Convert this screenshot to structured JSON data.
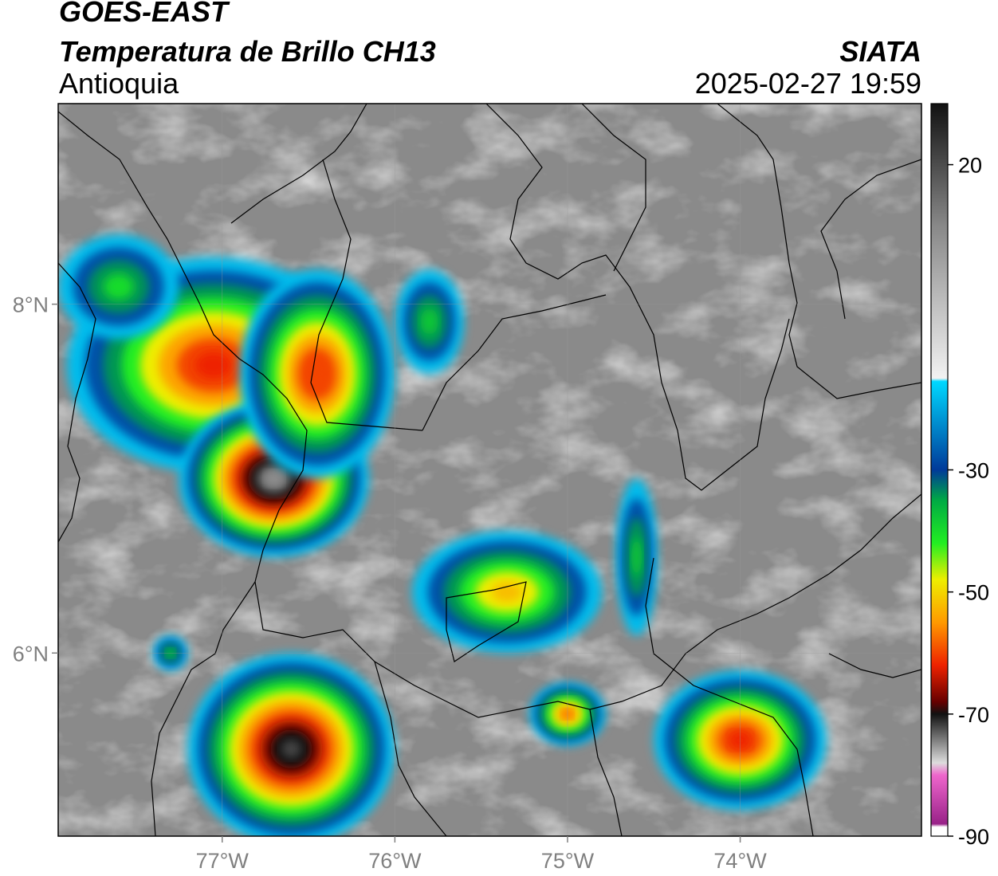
{
  "header": {
    "satellite": "GOES-EAST",
    "product": "Temperatura de Brillo CH13",
    "region": "Antioquia",
    "organization": "SIATA",
    "timestamp": "2025-02-27 19:59"
  },
  "map": {
    "lon_range": [
      -77.95,
      -72.95
    ],
    "lat_range": [
      4.95,
      9.15
    ],
    "lon_ticks": [
      {
        "value": -77,
        "label": "77°W"
      },
      {
        "value": -76,
        "label": "76°W"
      },
      {
        "value": -75,
        "label": "75°W"
      },
      {
        "value": -74,
        "label": "74°W"
      }
    ],
    "lat_ticks": [
      {
        "value": 8,
        "label": "8°N"
      },
      {
        "value": 6,
        "label": "6°N"
      }
    ],
    "gridlines": true,
    "background_gray": "#8a8a8a",
    "storms": [
      {
        "lon": -77.05,
        "lat": 7.65,
        "rx": 0.85,
        "ry": 0.62,
        "peak": -62
      },
      {
        "lon": -76.7,
        "lat": 7.0,
        "rx": 0.55,
        "ry": 0.45,
        "peak": -75
      },
      {
        "lon": -76.45,
        "lat": 7.6,
        "rx": 0.45,
        "ry": 0.6,
        "peak": -60
      },
      {
        "lon": -75.8,
        "lat": 7.9,
        "rx": 0.2,
        "ry": 0.3,
        "peak": -38
      },
      {
        "lon": -77.6,
        "lat": 8.1,
        "rx": 0.35,
        "ry": 0.3,
        "peak": -40
      },
      {
        "lon": -76.6,
        "lat": 5.45,
        "rx": 0.6,
        "ry": 0.55,
        "peak": -72
      },
      {
        "lon": -75.35,
        "lat": 6.35,
        "rx": 0.55,
        "ry": 0.35,
        "peak": -52
      },
      {
        "lon": -75.0,
        "lat": 5.65,
        "rx": 0.22,
        "ry": 0.18,
        "peak": -58
      },
      {
        "lon": -74.0,
        "lat": 5.5,
        "rx": 0.5,
        "ry": 0.4,
        "peak": -62
      },
      {
        "lon": -74.6,
        "lat": 6.55,
        "rx": 0.12,
        "ry": 0.45,
        "peak": -38
      },
      {
        "lon": -77.3,
        "lat": 6.0,
        "rx": 0.1,
        "ry": 0.1,
        "peak": -38
      }
    ]
  },
  "colorbar": {
    "vmin": -90,
    "vmax": 30,
    "ticks": [
      {
        "value": 20,
        "label": "20"
      },
      {
        "value": -30,
        "label": "-30"
      },
      {
        "value": -50,
        "label": "-50"
      },
      {
        "value": -70,
        "label": "-70"
      },
      {
        "value": -90,
        "label": "-90"
      }
    ],
    "stops": [
      {
        "t": 30,
        "color": "#111111"
      },
      {
        "t": 10,
        "color": "#888888"
      },
      {
        "t": -15,
        "color": "#f2f2f2"
      },
      {
        "t": -15.5,
        "color": "#00d8ff"
      },
      {
        "t": -30,
        "color": "#003a99"
      },
      {
        "t": -35,
        "color": "#00aa44"
      },
      {
        "t": -42,
        "color": "#22ee22"
      },
      {
        "t": -48,
        "color": "#eeee00"
      },
      {
        "t": -55,
        "color": "#ff9900"
      },
      {
        "t": -62,
        "color": "#ee2200"
      },
      {
        "t": -68,
        "color": "#660000"
      },
      {
        "t": -70,
        "color": "#111111"
      },
      {
        "t": -78,
        "color": "#dddddd"
      },
      {
        "t": -80,
        "color": "#ee66cc"
      },
      {
        "t": -88,
        "color": "#992288"
      },
      {
        "t": -88.5,
        "color": "#ffffff"
      },
      {
        "t": -90,
        "color": "#ffffff"
      }
    ]
  }
}
